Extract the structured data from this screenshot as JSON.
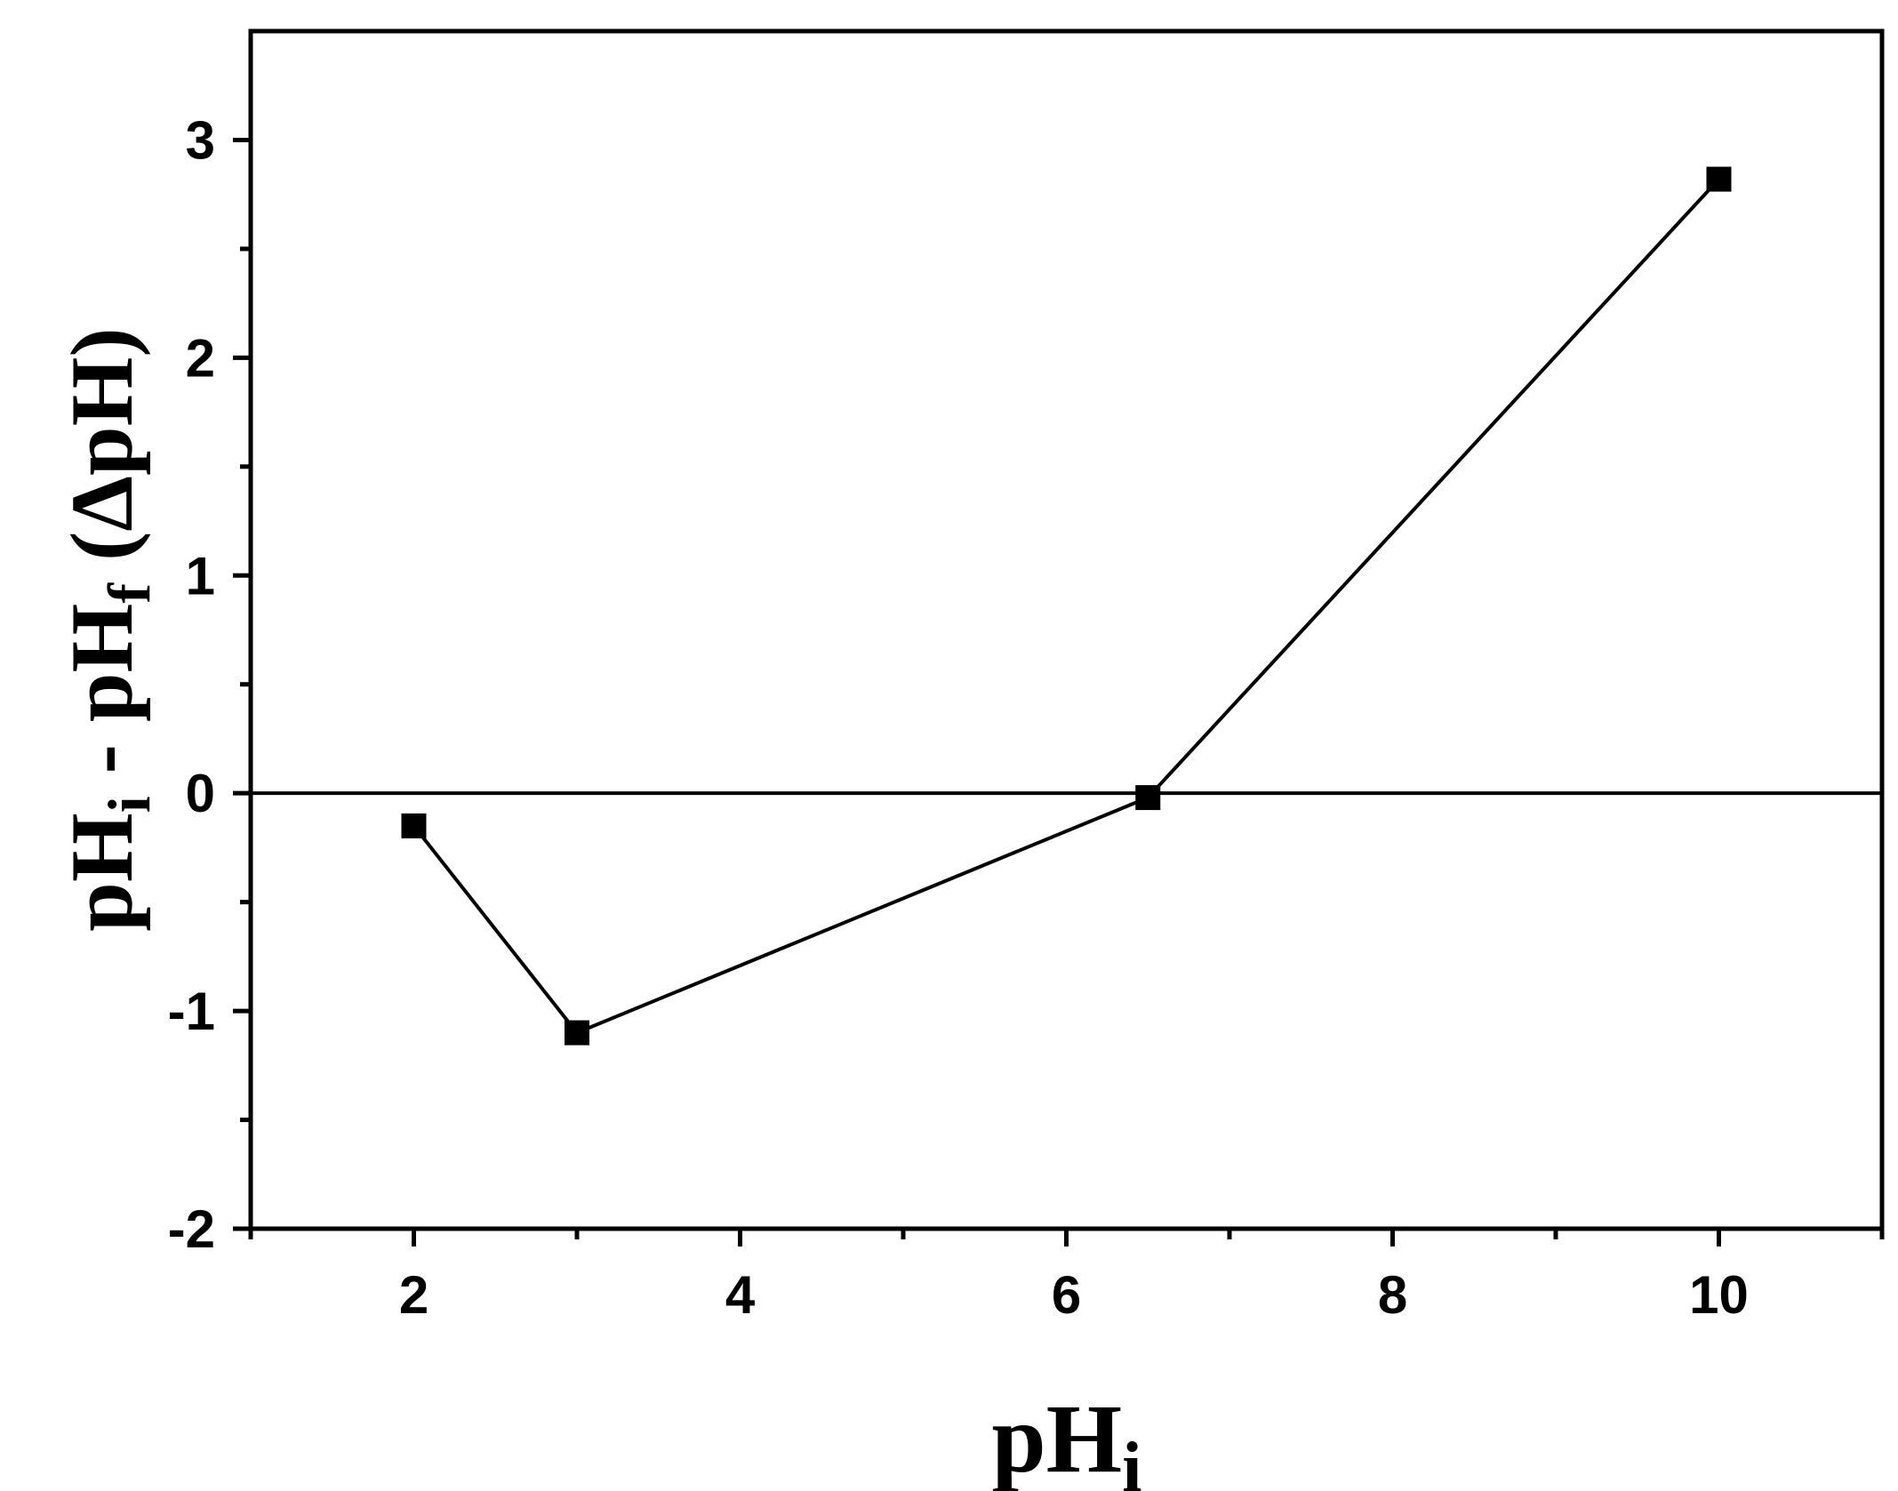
{
  "chart_data": {
    "type": "line",
    "xlabel": {
      "main": "pH",
      "sub": "i"
    },
    "ylabel": {
      "p1": "pH",
      "s1": "i",
      "p2": " - pH",
      "s2": "f",
      "p3": " (ΔpH)"
    },
    "xlim": [
      1,
      11
    ],
    "ylim": [
      -2,
      3.5
    ],
    "x_major_ticks": [
      2,
      4,
      6,
      8,
      10
    ],
    "x_minor_ticks": [
      1,
      3,
      5,
      7,
      9,
      11
    ],
    "y_major_ticks": [
      -2,
      -1,
      0,
      1,
      2,
      3
    ],
    "y_minor_ticks": [
      -1.5,
      -0.5,
      0.5,
      1.5,
      2.5
    ],
    "x_tick_labels": [
      "2",
      "4",
      "6",
      "8",
      "10"
    ],
    "y_tick_labels": [
      "-2",
      "-1",
      "0",
      "1",
      "2",
      "3"
    ],
    "reference_line_y": 0,
    "marker": "square",
    "color": "#000000",
    "series": [
      {
        "x": [
          2,
          3,
          6.5,
          10
        ],
        "y": [
          -0.15,
          -1.1,
          -0.02,
          2.82
        ]
      }
    ]
  }
}
